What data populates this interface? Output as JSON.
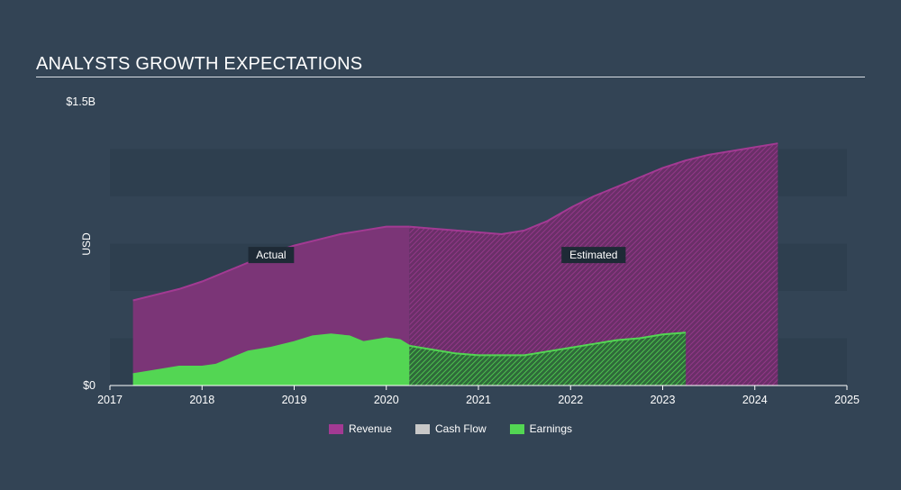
{
  "title": "ANALYSTS GROWTH EXPECTATIONS",
  "chart_data": {
    "type": "area",
    "ylabel": "USD",
    "ylim": [
      0,
      1.5
    ],
    "y_ticks": [
      {
        "value": 0,
        "label": "$0"
      },
      {
        "value": 1.5,
        "label": "$1.5B"
      }
    ],
    "xlim": [
      2017,
      2025
    ],
    "x_ticks": [
      {
        "value": 2017,
        "label": "2017"
      },
      {
        "value": 2018,
        "label": "2018"
      },
      {
        "value": 2019,
        "label": "2019"
      },
      {
        "value": 2020,
        "label": "2020"
      },
      {
        "value": 2021,
        "label": "2021"
      },
      {
        "value": 2022,
        "label": "2022"
      },
      {
        "value": 2023,
        "label": "2023"
      },
      {
        "value": 2024,
        "label": "2024"
      },
      {
        "value": 2025,
        "label": "2025"
      }
    ],
    "actual_end": 2020.25,
    "annotations": [
      {
        "text": "Actual",
        "x": 2018.75,
        "y": 0.69
      },
      {
        "text": "Estimated",
        "x": 2022.25,
        "y": 0.69
      }
    ],
    "series": [
      {
        "name": "Revenue",
        "color": "#a33a93",
        "points": [
          [
            2017.25,
            0.45
          ],
          [
            2017.5,
            0.48
          ],
          [
            2017.75,
            0.51
          ],
          [
            2018.0,
            0.55
          ],
          [
            2018.25,
            0.6
          ],
          [
            2018.5,
            0.65
          ],
          [
            2018.75,
            0.7
          ],
          [
            2019.0,
            0.74
          ],
          [
            2019.25,
            0.77
          ],
          [
            2019.5,
            0.8
          ],
          [
            2019.75,
            0.82
          ],
          [
            2020.0,
            0.84
          ],
          [
            2020.25,
            0.84
          ],
          [
            2020.5,
            0.83
          ],
          [
            2020.75,
            0.82
          ],
          [
            2021.0,
            0.81
          ],
          [
            2021.25,
            0.8
          ],
          [
            2021.5,
            0.82
          ],
          [
            2021.75,
            0.87
          ],
          [
            2022.0,
            0.94
          ],
          [
            2022.25,
            1.0
          ],
          [
            2022.5,
            1.05
          ],
          [
            2022.75,
            1.1
          ],
          [
            2023.0,
            1.15
          ],
          [
            2023.25,
            1.19
          ],
          [
            2023.5,
            1.22
          ],
          [
            2023.75,
            1.24
          ],
          [
            2024.0,
            1.26
          ],
          [
            2024.25,
            1.28
          ]
        ]
      },
      {
        "name": "Cash Flow",
        "color": "#c8c8c8",
        "points": []
      },
      {
        "name": "Earnings",
        "color": "#53d653",
        "points": [
          [
            2017.25,
            0.06
          ],
          [
            2017.5,
            0.08
          ],
          [
            2017.75,
            0.1
          ],
          [
            2018.0,
            0.1
          ],
          [
            2018.15,
            0.11
          ],
          [
            2018.3,
            0.14
          ],
          [
            2018.5,
            0.18
          ],
          [
            2018.75,
            0.2
          ],
          [
            2019.0,
            0.23
          ],
          [
            2019.2,
            0.26
          ],
          [
            2019.4,
            0.27
          ],
          [
            2019.6,
            0.26
          ],
          [
            2019.75,
            0.23
          ],
          [
            2020.0,
            0.25
          ],
          [
            2020.15,
            0.24
          ],
          [
            2020.25,
            0.21
          ],
          [
            2020.5,
            0.19
          ],
          [
            2020.75,
            0.17
          ],
          [
            2021.0,
            0.16
          ],
          [
            2021.25,
            0.16
          ],
          [
            2021.5,
            0.16
          ],
          [
            2021.75,
            0.18
          ],
          [
            2022.0,
            0.2
          ],
          [
            2022.25,
            0.22
          ],
          [
            2022.5,
            0.24
          ],
          [
            2022.75,
            0.25
          ],
          [
            2023.0,
            0.27
          ],
          [
            2023.25,
            0.28
          ]
        ]
      }
    ]
  }
}
